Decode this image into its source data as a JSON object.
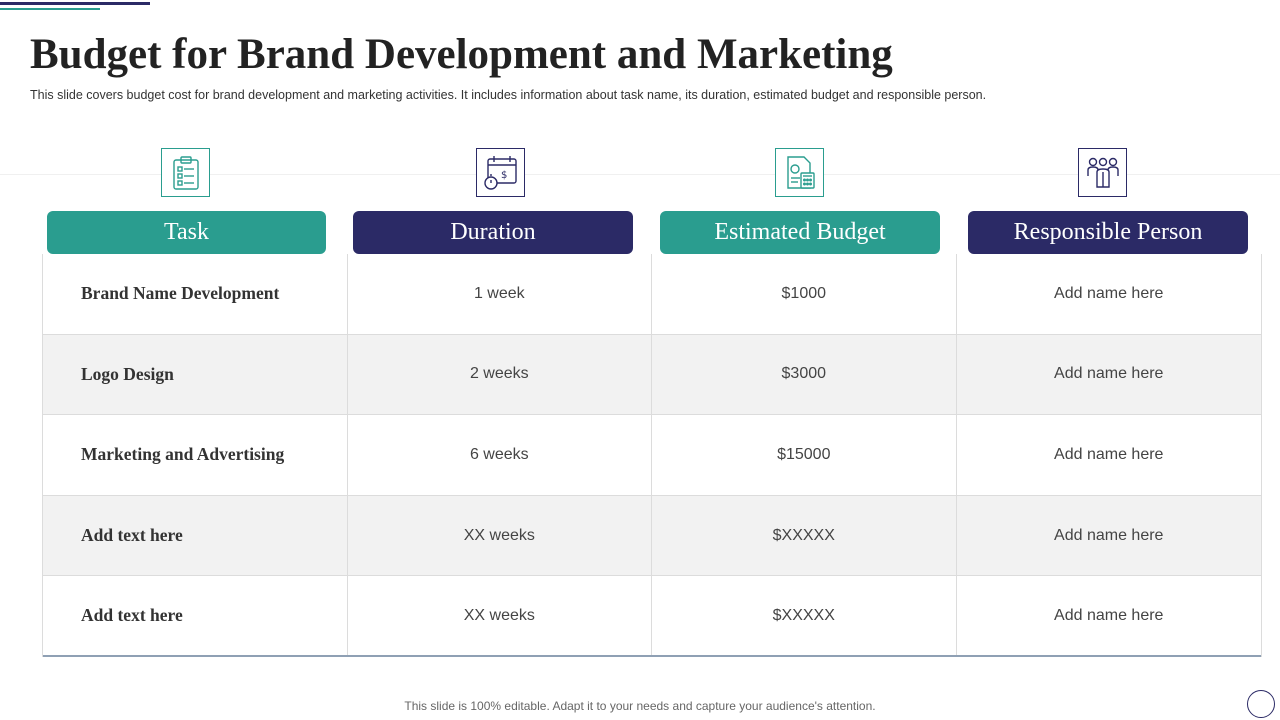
{
  "slide": {
    "title": "Budget for Brand Development and Marketing",
    "subtitle": "This slide covers budget cost for brand development  and marketing activities. It includes information about task name, its duration, estimated budget and responsible person.",
    "footer": "This slide is 100% editable. Adapt it to your needs and capture your audience's attention."
  },
  "columns": [
    {
      "label": "Task",
      "icon": "clipboard-checklist-icon",
      "color": "#2a9d8f"
    },
    {
      "label": "Duration",
      "icon": "calendar-stopwatch-dollar-icon",
      "color": "#2b2a66"
    },
    {
      "label": "Estimated Budget",
      "icon": "invoice-calculator-icon",
      "color": "#2a9d8f"
    },
    {
      "label": "Responsible Person",
      "icon": "team-people-icon",
      "color": "#2b2a66"
    }
  ],
  "rows": [
    {
      "task": "Brand Name Development",
      "duration": "1 week",
      "budget": "$1000",
      "person": "Add name here"
    },
    {
      "task": "Logo Design",
      "duration": "2 weeks",
      "budget": "$3000",
      "person": "Add name here"
    },
    {
      "task": "Marketing and Advertising",
      "duration": "6 weeks",
      "budget": "$15000",
      "person": "Add name here"
    },
    {
      "task": "Add text here",
      "duration": "XX weeks",
      "budget": "$XXXXX",
      "person": "Add name here"
    },
    {
      "task": "Add text here",
      "duration": "XX weeks",
      "budget": "$XXXXX",
      "person": "Add name here"
    }
  ]
}
